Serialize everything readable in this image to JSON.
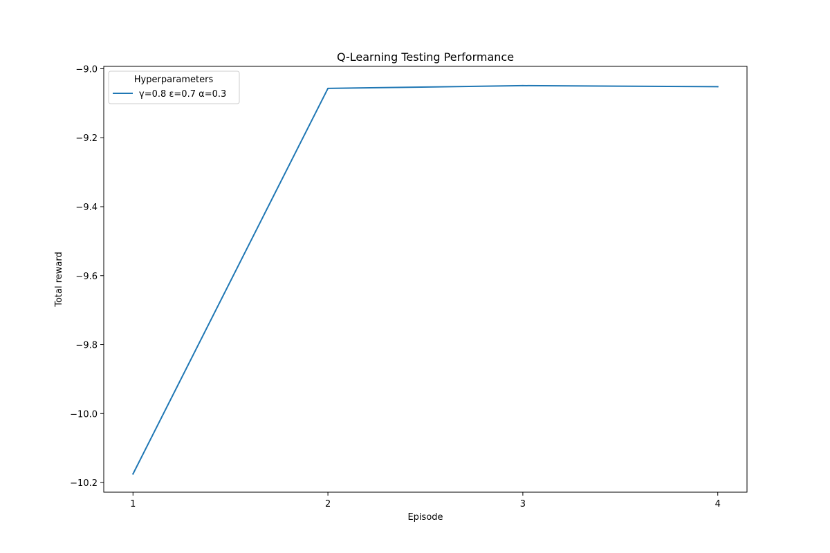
{
  "chart_data": {
    "type": "line",
    "title": "Q-Learning Testing Performance",
    "xlabel": "Episode",
    "ylabel": "Total reward",
    "x": [
      1,
      2,
      3,
      4
    ],
    "xticks": [
      1,
      2,
      3,
      4
    ],
    "xtick_labels": [
      "1",
      "2",
      "3",
      "4"
    ],
    "yticks": [
      -9.0,
      -9.2,
      -9.4,
      -9.6,
      -9.8,
      -10.0,
      -10.2
    ],
    "ytick_labels": [
      "−9.0",
      "−9.2",
      "−9.4",
      "−9.6",
      "−9.8",
      "−10.0",
      "−10.2"
    ],
    "xlim": [
      0.85,
      4.15
    ],
    "ylim": [
      -10.228,
      -8.993
    ],
    "grid": false,
    "legend": {
      "title": "Hyperparameters",
      "placement": "upper-left"
    },
    "series": [
      {
        "name": "γ=0.8 ε=0.7 α=0.3",
        "color": "#1f77b4",
        "values": [
          -10.175,
          -9.057,
          -9.049,
          -9.052
        ]
      }
    ]
  }
}
